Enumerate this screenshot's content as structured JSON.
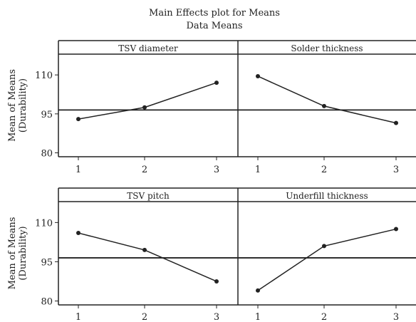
{
  "chart_data": {
    "type": "line",
    "title": "Main Effects plot for Means",
    "subtitle": "Data Means",
    "ylabel_line1": "Mean of Means",
    "ylabel_line2": "(Durability)",
    "x_levels": [
      "1",
      "2",
      "3"
    ],
    "ylim": [
      78.5,
      118
    ],
    "yticks": [
      80,
      95,
      110
    ],
    "overall_mean": 96.5,
    "grid": false,
    "panels": [
      {
        "name": "TSV diameter",
        "values": [
          93,
          97.5,
          107
        ]
      },
      {
        "name": "Solder thickness",
        "values": [
          109.5,
          98,
          91.5
        ]
      },
      {
        "name": "TSV pitch",
        "values": [
          106,
          99.5,
          87.5
        ]
      },
      {
        "name": "Underfill thickness",
        "values": [
          84,
          101,
          107.5
        ]
      }
    ]
  }
}
